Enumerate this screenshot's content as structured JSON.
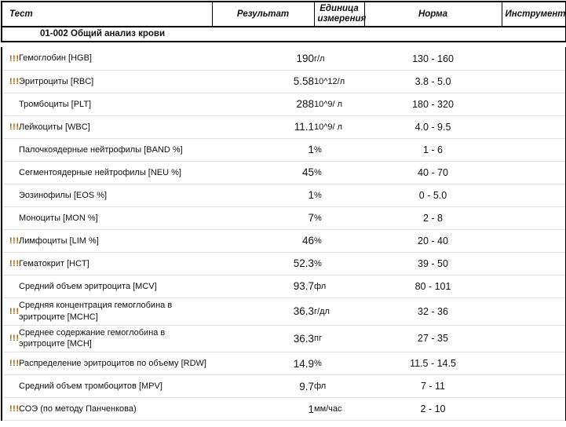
{
  "header": {
    "columns": [
      "Тест",
      "Результат",
      "Единица измерения",
      "Норма",
      "Инструмент"
    ]
  },
  "section": {
    "title": "01-002 Общий анализ крови"
  },
  "colors": {
    "abnormal_flag": "#b85a00",
    "header_border": "#000000",
    "row_divider": "#e3e3e3"
  },
  "rows": [
    {
      "flag": "!!!",
      "test": "Гемоглобин [HGB]",
      "result": "190",
      "unit": "г/л",
      "norm": "130 - 160",
      "instrument": ""
    },
    {
      "flag": "!!!",
      "test": "Эритроциты [RBC]",
      "result": "5.58",
      "unit": "10^12/л",
      "norm": "3.8 - 5.0",
      "instrument": ""
    },
    {
      "flag": "",
      "test": "Тромбоциты [PLT]",
      "result": "288",
      "unit": "10^9/ л",
      "norm": "180 - 320",
      "instrument": ""
    },
    {
      "flag": "!!!",
      "test": "Лейкоциты [WBC]",
      "result": "11.1",
      "unit": "10^9/ л",
      "norm": "4.0 - 9.5",
      "instrument": ""
    },
    {
      "flag": "",
      "test": "Палочкоядерные нейтрофилы [BAND %]",
      "result": "1",
      "unit": "%",
      "norm": "1 - 6",
      "instrument": ""
    },
    {
      "flag": "",
      "test": "Сегментоядерные нейтрофилы [NEU %]",
      "result": "45",
      "unit": "%",
      "norm": "40 - 70",
      "instrument": ""
    },
    {
      "flag": "",
      "test": "Эозинофилы [EOS %]",
      "result": "1",
      "unit": "%",
      "norm": "0 - 5.0",
      "instrument": ""
    },
    {
      "flag": "",
      "test": "Моноциты [MON %]",
      "result": "7",
      "unit": "%",
      "norm": "2 - 8",
      "instrument": ""
    },
    {
      "flag": "!!!",
      "test": "Лимфоциты [LIM %]",
      "result": "46",
      "unit": "%",
      "norm": "20 - 40",
      "instrument": ""
    },
    {
      "flag": "!!!",
      "test": "Гематокрит [HCT]",
      "result": "52.3",
      "unit": "%",
      "norm": "39 - 50",
      "instrument": ""
    },
    {
      "flag": "",
      "test": "Средний объем эритроцита [MCV]",
      "result": "93.7",
      "unit": "фл",
      "norm": "80 -  101",
      "instrument": ""
    },
    {
      "flag": "!!!",
      "test": "Средняя концентрация гемоглобина в эритроците [MCHC]",
      "result": "36.3",
      "unit": "г/дл",
      "norm": "32 - 36",
      "instrument": ""
    },
    {
      "flag": "!!!",
      "test": "Среднее содержание гемоглобина  в эритроците [MCH]",
      "result": "36.3",
      "unit": "пг",
      "norm": "27 - 35",
      "instrument": ""
    },
    {
      "flag": "!!!",
      "test": "Распределение эритроцитов по объему [RDW]",
      "result": "14.9",
      "unit": "%",
      "norm": "11.5 - 14.5",
      "instrument": ""
    },
    {
      "flag": "",
      "test": "Средний объем тромбоцитов [MPV]",
      "result": "9.7",
      "unit": "фл",
      "norm": "7 - 11",
      "instrument": ""
    },
    {
      "flag": "!!!",
      "test": "СОЭ (по методу Панченкова)",
      "result": "1",
      "unit": "мм/час",
      "norm": "2 - 10",
      "instrument": ""
    }
  ]
}
